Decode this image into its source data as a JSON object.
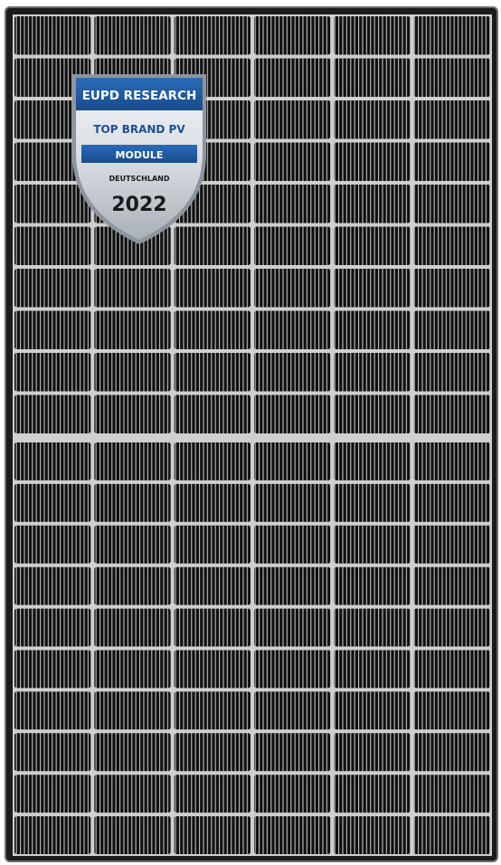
{
  "colors": {
    "frame": "#1b1b1b",
    "frame_edge": "#6c6c6c",
    "backsheet_gap": "#cfcfcf",
    "cell": "#101010",
    "finger": "#c4c4c4",
    "badge_blue": "#1f5ea6",
    "badge_silver": "#e6e9ee",
    "badge_text_dark": "#1f4f8f",
    "badge_year": "#1a1a1a"
  },
  "panel": {
    "columns": 6,
    "rows_top": 10,
    "rows_bottom": 10,
    "cell_type": "half-cut monocrystalline"
  },
  "badge": {
    "brand": "EUPD RESEARCH",
    "title": "TOP BRAND PV",
    "category": "MODULE",
    "region": "DEUTSCHLAND",
    "year": "2022"
  }
}
